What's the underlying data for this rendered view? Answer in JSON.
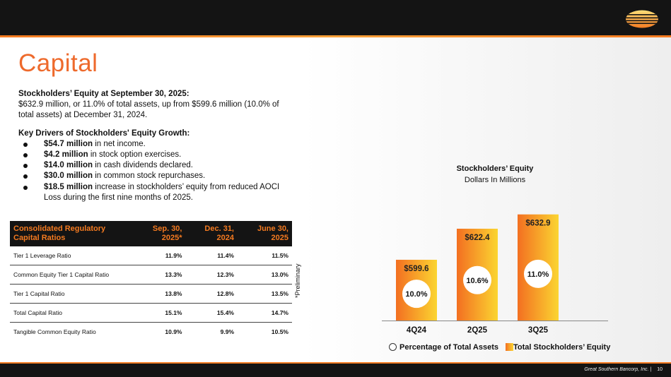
{
  "title": "Capital",
  "intro": {
    "heading": "Stockholders’ Equity at September 30, 2025:",
    "body": "$632.9 million, or 11.0% of total assets, up from $599.6 million (10.0% of total assets) at December 31, 2024."
  },
  "drivers": {
    "heading": "Key Drivers of Stockholders' Equity Growth:",
    "items": [
      {
        "bold": "$54.7 million",
        "rest": " in net income."
      },
      {
        "bold": "$4.2 million",
        "rest": " in stock option exercises."
      },
      {
        "bold": "$14.0 million",
        "rest": " in cash dividends declared."
      },
      {
        "bold": "$30.0 million",
        "rest": " in common stock repurchases."
      },
      {
        "bold": "$18.5 million",
        "rest": " increase in stockholders’ equity from reduced AOCI Loss during the first nine months of 2025."
      }
    ]
  },
  "table": {
    "headers": [
      [
        "Consolidated Regulatory",
        "Capital Ratios"
      ],
      [
        "Sep. 30,",
        "2025*"
      ],
      [
        "Dec. 31,",
        "2024"
      ],
      [
        "June 30,",
        "2025"
      ]
    ],
    "rows": [
      [
        "Tier 1 Leverage Ratio",
        "11.9%",
        "11.4%",
        "11.5%"
      ],
      [
        "Common Equity Tier 1 Capital Ratio",
        "13.3%",
        "12.3%",
        "13.0%"
      ],
      [
        "Tier 1 Capital Ratio",
        "13.8%",
        "12.8%",
        "13.5%"
      ],
      [
        "Total Capital Ratio",
        "15.1%",
        "15.4%",
        "14.7%"
      ],
      [
        "Tangible Common Equity Ratio",
        "10.9%",
        "9.9%",
        "10.5%"
      ]
    ],
    "footnote": "*Preliminary"
  },
  "chart_data": {
    "type": "bar",
    "title": "Stockholders’ Equity",
    "subtitle": "Dollars In Millions",
    "categories": [
      "4Q24",
      "2Q25",
      "3Q25"
    ],
    "series": [
      {
        "name": "Total Stockholders’ Equity",
        "values": [
          599.6,
          622.4,
          632.9
        ],
        "labels": [
          "$599.6",
          "$622.4",
          "$632.9"
        ]
      },
      {
        "name": "Percentage of Total Assets",
        "values": [
          10.0,
          10.6,
          11.0
        ],
        "labels": [
          "10.0%",
          "10.6%",
          "11.0%"
        ]
      }
    ],
    "ylim": [
      555,
      640
    ],
    "legend": [
      "Percentage of Total Assets",
      "Total Stockholders’ Equity"
    ]
  },
  "footer": {
    "company": "Great Southern Bancorp, Inc.",
    "separator": "|",
    "page": "10"
  },
  "colors": {
    "accent": "#ee6a2c",
    "bar_start": "#f36f21",
    "bar_end": "#fbd531",
    "header_bg": "#141414"
  }
}
